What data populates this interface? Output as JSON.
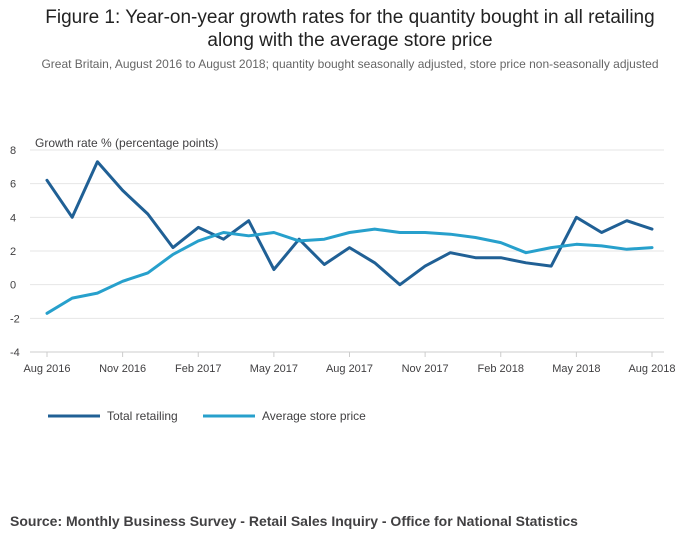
{
  "figure": {
    "title": "Figure 1: Year-on-year growth rates for the quantity bought in all retailing along with the average store price",
    "subtitle": "Great Britain, August 2016 to August 2018; quantity bought seasonally adjusted, store price non-seasonally adjusted",
    "source": "Source: Monthly Business Survey - Retail Sales Inquiry - Office for National Statistics"
  },
  "colors": {
    "total_retailing": "#206095",
    "average_store_price": "#27a0cc",
    "grid": "#e6e6e6",
    "axis": "#cccccc",
    "text": "#414042"
  },
  "chart_data": {
    "type": "line",
    "ylabel": "Growth rate % (percentage points)",
    "xlabel": "",
    "ylim": [
      -4,
      8
    ],
    "y_ticks": [
      8,
      6,
      4,
      2,
      0,
      -2,
      -4
    ],
    "y_tick_labels": [
      "8",
      "6",
      "4",
      "2",
      "0",
      "-2",
      "-4"
    ],
    "grid": true,
    "legend": "bottom-left",
    "x": [
      "Aug 2016",
      "Sep 2016",
      "Oct 2016",
      "Nov 2016",
      "Dec 2016",
      "Jan 2017",
      "Feb 2017",
      "Mar 2017",
      "Apr 2017",
      "May 2017",
      "Jun 2017",
      "Jul 2017",
      "Aug 2017",
      "Sep 2017",
      "Oct 2017",
      "Nov 2017",
      "Dec 2017",
      "Jan 2018",
      "Feb 2018",
      "Mar 2018",
      "Apr 2018",
      "May 2018",
      "Jun 2018",
      "Jul 2018",
      "Aug 2018"
    ],
    "x_tick_labels": [
      "Aug 2016",
      "Nov 2016",
      "Feb 2017",
      "May 2017",
      "Aug 2017",
      "Nov 2017",
      "Feb 2018",
      "May 2018",
      "Aug 2018"
    ],
    "x_tick_indices": [
      0,
      3,
      6,
      9,
      12,
      15,
      18,
      21,
      24
    ],
    "series": [
      {
        "name": "Total retailing",
        "color_key": "total_retailing",
        "values": [
          6.2,
          4.0,
          7.3,
          5.6,
          4.2,
          2.2,
          3.4,
          2.7,
          3.8,
          0.9,
          2.7,
          1.2,
          2.2,
          1.3,
          0.0,
          1.1,
          1.9,
          1.6,
          1.6,
          1.3,
          1.1,
          4.0,
          3.1,
          3.8,
          3.3
        ]
      },
      {
        "name": "Average store price",
        "color_key": "average_store_price",
        "values": [
          -1.7,
          -0.8,
          -0.5,
          0.2,
          0.7,
          1.8,
          2.6,
          3.1,
          2.9,
          3.1,
          2.6,
          2.7,
          3.1,
          3.3,
          3.1,
          3.1,
          3.0,
          2.8,
          2.5,
          1.9,
          2.2,
          2.4,
          2.3,
          2.1,
          2.2
        ]
      }
    ]
  }
}
